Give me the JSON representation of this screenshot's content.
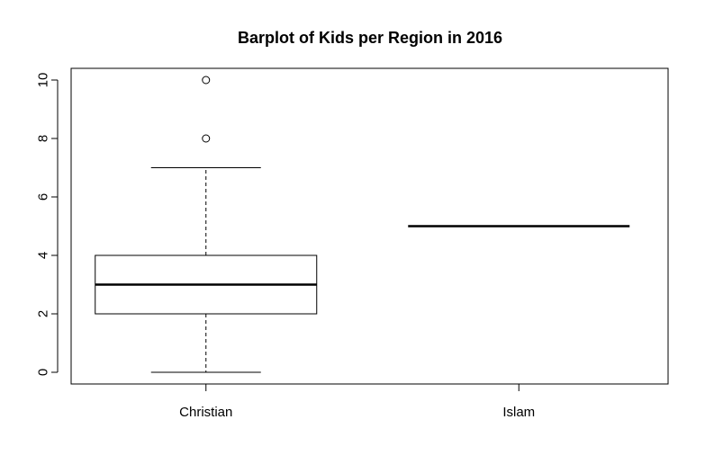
{
  "chart_data": {
    "type": "boxplot",
    "title": "Barplot of Kids per Region in 2016",
    "xlabel": "",
    "ylabel": "",
    "ylim": [
      -0.4,
      10.4
    ],
    "y_ticks": [
      0,
      2,
      4,
      6,
      8,
      10
    ],
    "grid": false,
    "categories": [
      "Christian",
      "Islam"
    ],
    "boxes": [
      {
        "category": "Christian",
        "min": 0,
        "q1": 2,
        "median": 3,
        "q3": 4,
        "max": 7,
        "outliers": [
          8,
          10
        ]
      },
      {
        "category": "Islam",
        "min": 5,
        "q1": 5,
        "median": 5,
        "q3": 5,
        "max": 5,
        "outliers": []
      }
    ]
  }
}
